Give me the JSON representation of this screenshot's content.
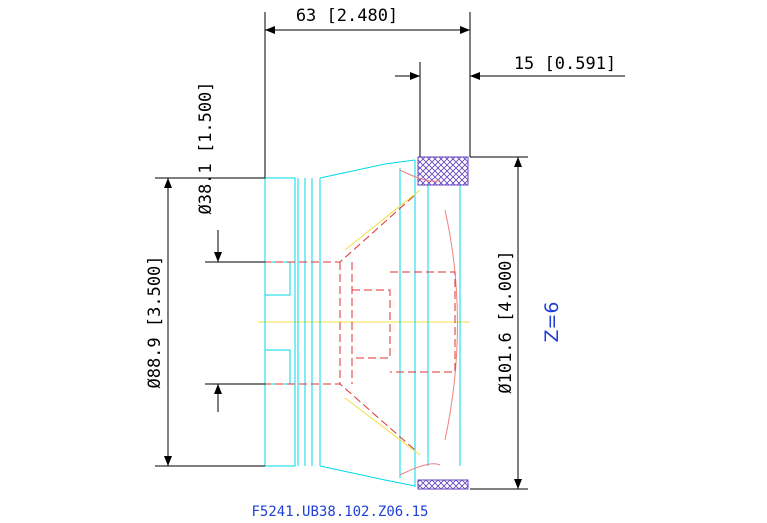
{
  "dimensions": [
    {
      "label": "63 [2.480]"
    },
    {
      "label": "15 [0.591]"
    },
    {
      "label": "Ø38.1 [1.500]"
    },
    {
      "label": "Ø88.9 [3.500]"
    },
    {
      "label": "Ø101.6 [4.000]"
    }
  ],
  "annotation": "Z=6",
  "part_number": "F5241.UB38.102.Z06.15"
}
